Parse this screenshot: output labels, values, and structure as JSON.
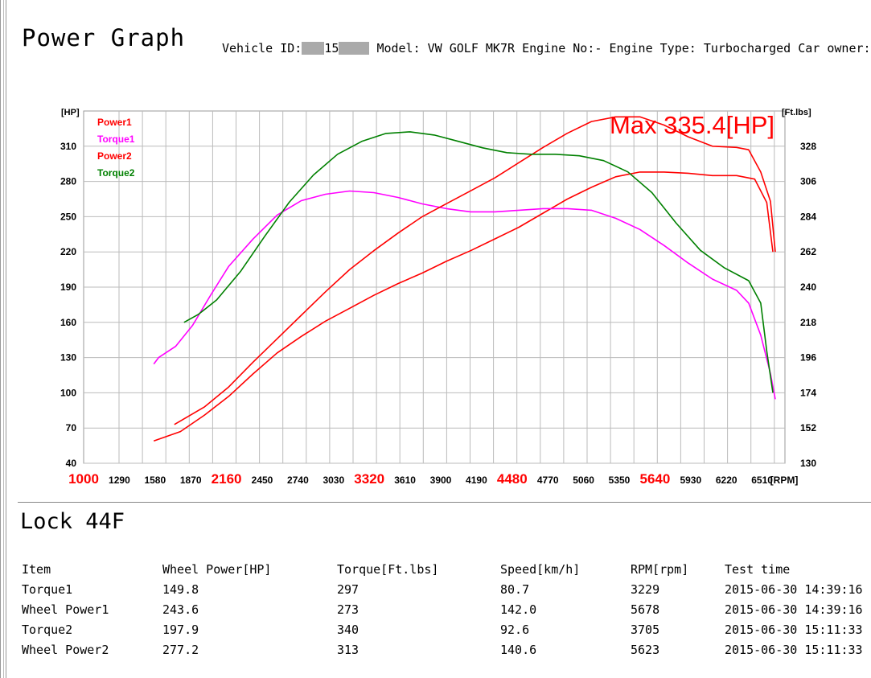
{
  "header": {
    "title": "Power Graph",
    "vehicle_label": "Vehicle ID:",
    "vehicle_id_visible": "15",
    "model_text": "Model: VW GOLF MK7R",
    "engine_no_text": "Engine No:-",
    "engine_type_text": "Engine Type: Turbocharged",
    "owner_text": "Car owner: -"
  },
  "chart_data": {
    "type": "line",
    "left_axis_unit": "[HP]",
    "right_axis_unit": "[Ft.lbs]",
    "x_unit": "[RPM]",
    "x_ticks": [
      {
        "label": "1000",
        "highlight": true
      },
      {
        "label": "1290",
        "highlight": false
      },
      {
        "label": "1580",
        "highlight": false
      },
      {
        "label": "1870",
        "highlight": false
      },
      {
        "label": "2160",
        "highlight": true
      },
      {
        "label": "2450",
        "highlight": false
      },
      {
        "label": "2740",
        "highlight": false
      },
      {
        "label": "3030",
        "highlight": false
      },
      {
        "label": "3320",
        "highlight": true
      },
      {
        "label": "3610",
        "highlight": false
      },
      {
        "label": "3900",
        "highlight": false
      },
      {
        "label": "4190",
        "highlight": false
      },
      {
        "label": "4480",
        "highlight": true
      },
      {
        "label": "4770",
        "highlight": false
      },
      {
        "label": "5060",
        "highlight": false
      },
      {
        "label": "5350",
        "highlight": false
      },
      {
        "label": "5640",
        "highlight": true
      },
      {
        "label": "5930",
        "highlight": false
      },
      {
        "label": "6220",
        "highlight": false
      },
      {
        "label": "6510",
        "highlight": false
      }
    ],
    "xlim": [
      1000,
      6800
    ],
    "left_ylim": [
      40,
      340
    ],
    "left_ticks": [
      "40",
      "70",
      "100",
      "130",
      "160",
      "190",
      "220",
      "250",
      "280",
      "310"
    ],
    "right_ylim": [
      130,
      350
    ],
    "right_ticks": [
      "130",
      "152",
      "174",
      "196",
      "218",
      "240",
      "262",
      "284",
      "306",
      "328"
    ],
    "grid": true,
    "legend_position": "top-left",
    "annotation": "Max 335.4[HP]",
    "series": [
      {
        "name": "Power1",
        "axis": "left",
        "color": "#ff0000",
        "points": [
          [
            1580,
            59
          ],
          [
            1800,
            67
          ],
          [
            2000,
            81
          ],
          [
            2200,
            97
          ],
          [
            2400,
            116
          ],
          [
            2600,
            134
          ],
          [
            2800,
            148
          ],
          [
            3000,
            161
          ],
          [
            3200,
            172
          ],
          [
            3400,
            183
          ],
          [
            3600,
            193
          ],
          [
            3800,
            202
          ],
          [
            4000,
            212
          ],
          [
            4200,
            221
          ],
          [
            4400,
            231
          ],
          [
            4600,
            241
          ],
          [
            4800,
            253
          ],
          [
            5000,
            265
          ],
          [
            5200,
            275
          ],
          [
            5400,
            284
          ],
          [
            5600,
            288
          ],
          [
            5800,
            288
          ],
          [
            6000,
            287
          ],
          [
            6200,
            285
          ],
          [
            6400,
            285
          ],
          [
            6550,
            282
          ],
          [
            6650,
            262
          ],
          [
            6700,
            220
          ]
        ]
      },
      {
        "name": "Torque1",
        "axis": "right",
        "color": "#ff00ff",
        "points": [
          [
            1580,
            192
          ],
          [
            1620,
            196
          ],
          [
            1760,
            203
          ],
          [
            1900,
            216
          ],
          [
            2050,
            235
          ],
          [
            2200,
            253
          ],
          [
            2400,
            270
          ],
          [
            2600,
            285
          ],
          [
            2800,
            294
          ],
          [
            3000,
            298
          ],
          [
            3200,
            300
          ],
          [
            3400,
            299
          ],
          [
            3600,
            296
          ],
          [
            3800,
            292
          ],
          [
            4000,
            289
          ],
          [
            4200,
            287
          ],
          [
            4400,
            287
          ],
          [
            4600,
            288
          ],
          [
            4800,
            289
          ],
          [
            5000,
            289
          ],
          [
            5200,
            288
          ],
          [
            5400,
            283
          ],
          [
            5600,
            276
          ],
          [
            5800,
            266
          ],
          [
            6000,
            255
          ],
          [
            6200,
            245
          ],
          [
            6400,
            238
          ],
          [
            6500,
            230
          ],
          [
            6600,
            210
          ],
          [
            6680,
            186
          ],
          [
            6720,
            170
          ]
        ]
      },
      {
        "name": "Power2",
        "axis": "left",
        "color": "#ff0000",
        "points": [
          [
            1750,
            73
          ],
          [
            2000,
            88
          ],
          [
            2200,
            105
          ],
          [
            2400,
            126
          ],
          [
            2600,
            146
          ],
          [
            2800,
            166
          ],
          [
            3000,
            186
          ],
          [
            3200,
            205
          ],
          [
            3400,
            221
          ],
          [
            3600,
            236
          ],
          [
            3800,
            250
          ],
          [
            4000,
            261
          ],
          [
            4200,
            272
          ],
          [
            4400,
            283
          ],
          [
            4600,
            296
          ],
          [
            4800,
            309
          ],
          [
            5000,
            321
          ],
          [
            5200,
            331
          ],
          [
            5400,
            335
          ],
          [
            5600,
            335
          ],
          [
            5800,
            328
          ],
          [
            6000,
            318
          ],
          [
            6200,
            310
          ],
          [
            6400,
            309
          ],
          [
            6500,
            307
          ],
          [
            6600,
            288
          ],
          [
            6680,
            263
          ],
          [
            6720,
            220
          ]
        ]
      },
      {
        "name": "Torque2",
        "axis": "right",
        "color": "#008000",
        "points": [
          [
            1830,
            218
          ],
          [
            1950,
            223
          ],
          [
            2100,
            232
          ],
          [
            2300,
            250
          ],
          [
            2500,
            272
          ],
          [
            2700,
            293
          ],
          [
            2900,
            310
          ],
          [
            3100,
            323
          ],
          [
            3300,
            331
          ],
          [
            3500,
            336
          ],
          [
            3700,
            337
          ],
          [
            3900,
            335
          ],
          [
            4100,
            331
          ],
          [
            4300,
            327
          ],
          [
            4500,
            324
          ],
          [
            4700,
            323
          ],
          [
            4900,
            323
          ],
          [
            5100,
            322
          ],
          [
            5300,
            319
          ],
          [
            5500,
            312
          ],
          [
            5700,
            299
          ],
          [
            5900,
            280
          ],
          [
            6100,
            263
          ],
          [
            6300,
            252
          ],
          [
            6500,
            244
          ],
          [
            6600,
            230
          ],
          [
            6650,
            200
          ],
          [
            6700,
            174
          ]
        ]
      }
    ]
  },
  "results": {
    "title": "Lock 44F",
    "headers": [
      "Item",
      "Wheel Power[HP]",
      "Torque[Ft.lbs]",
      "Speed[km/h]",
      "RPM[rpm]",
      "Test time"
    ],
    "rows": [
      [
        "Torque1",
        "149.8",
        "297",
        "80.7",
        "3229",
        "2015-06-30 14:39:16"
      ],
      [
        "Wheel Power1",
        "243.6",
        "273",
        "142.0",
        "5678",
        "2015-06-30 14:39:16"
      ],
      [
        "Torque2",
        "197.9",
        "340",
        "92.6",
        "3705",
        "2015-06-30 15:11:33"
      ],
      [
        "Wheel Power2",
        "277.2",
        "313",
        "140.6",
        "5623",
        "2015-06-30 15:11:33"
      ]
    ]
  }
}
